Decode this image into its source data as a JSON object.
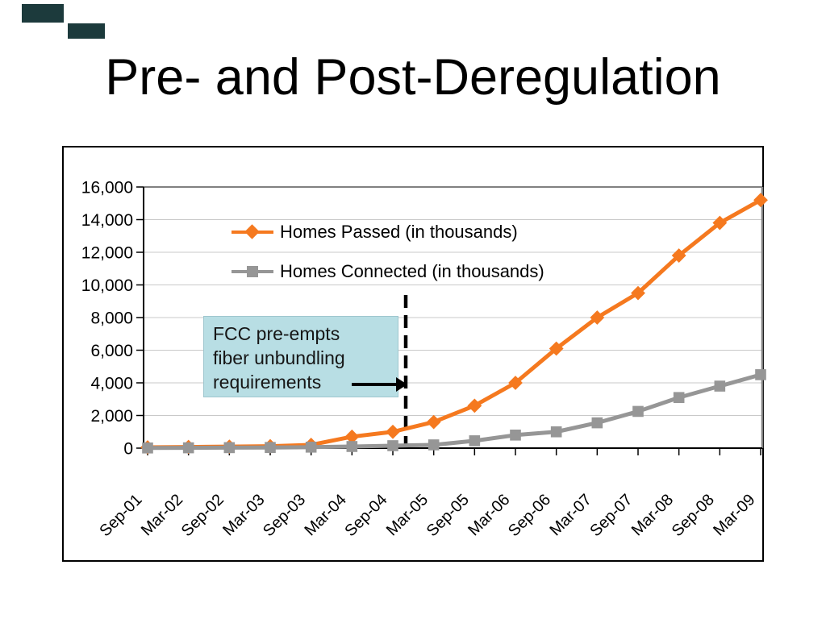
{
  "slide": {
    "title": "Pre- and Post-Deregulation"
  },
  "colors": {
    "homes_passed": "#F5791F",
    "homes_connected": "#969696",
    "annotation_fill": "#B8DEE4",
    "annotation_border": "#9EC6CE",
    "corner_marks": "#1C3A3C",
    "gridline": "#C9C9C9",
    "plot_border": "#808080",
    "axis": "#000000"
  },
  "chart_data": {
    "type": "line",
    "title": "",
    "categories": [
      "Sep-01",
      "Mar-02",
      "Sep-02",
      "Mar-03",
      "Sep-03",
      "Mar-04",
      "Sep-04",
      "Mar-05",
      "Sep-05",
      "Mar-06",
      "Sep-06",
      "Mar-07",
      "Sep-07",
      "Mar-08",
      "Sep-08",
      "Mar-09"
    ],
    "series": [
      {
        "name": "Homes Passed (in thousands)",
        "marker": "diamond",
        "color": "#F5791F",
        "values": [
          50,
          70,
          90,
          120,
          200,
          700,
          1000,
          1600,
          2600,
          4000,
          6100,
          8000,
          9500,
          11800,
          13800,
          15200
        ]
      },
      {
        "name": "Homes Connected (in thousands)",
        "marker": "square",
        "color": "#969696",
        "values": [
          10,
          20,
          30,
          40,
          60,
          100,
          150,
          200,
          450,
          800,
          1000,
          1550,
          2250,
          3100,
          3800,
          4500
        ]
      }
    ],
    "xlabel": "",
    "ylabel": "",
    "ylim": [
      0,
      16000
    ],
    "ytick_step": 2000,
    "ytick_labels": [
      "0",
      "2,000",
      "4,000",
      "6,000",
      "8,000",
      "10,000",
      "12,000",
      "14,000",
      "16,000"
    ],
    "x_label_rotation": -45,
    "grid": "horizontal",
    "legend_position": "inside-top-left",
    "annotation": {
      "lines": [
        "FCC pre-empts",
        "fiber unbundling",
        "requirements"
      ],
      "divider": "dashed vertical line between Sep-04 and Mar-05"
    }
  }
}
